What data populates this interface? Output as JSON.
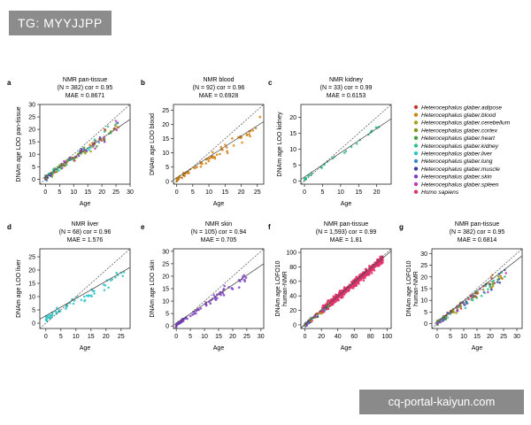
{
  "watermark": "TG: MYYJJPP",
  "footer": "cq-portal-kaiyun.com",
  "legend": [
    {
      "label": "Heterocephalus glaber.adipose",
      "color": "#c0392b"
    },
    {
      "label": "Heterocephalus glaber.blood",
      "color": "#d4800f"
    },
    {
      "label": "Heterocephalus glaber.cerebellum",
      "color": "#a4a21a"
    },
    {
      "label": "Heterocephalus glaber.cortex",
      "color": "#7a9a1a"
    },
    {
      "label": "Heterocephalus glaber.heart",
      "color": "#3aa33a"
    },
    {
      "label": "Heterocephalus glaber.kidney",
      "color": "#2fbf8f"
    },
    {
      "label": "Heterocephalus glaber.liver",
      "color": "#2ec4c4"
    },
    {
      "label": "Heterocephalus glaber.lung",
      "color": "#3a8ad6"
    },
    {
      "label": "Heterocephalus glaber.muscle",
      "color": "#3340a0"
    },
    {
      "label": "Heterocephalus glaber.skin",
      "color": "#7d3cc8"
    },
    {
      "label": "Heterocephalus glaber.spleen",
      "color": "#c23ab8"
    },
    {
      "label": "Homo sapiens",
      "color": "#e0306a"
    }
  ],
  "chart_data": [
    {
      "letter": "a",
      "type": "scatter",
      "title": "NMR pan-tissue",
      "stats": "(N = 382) cor = 0.95",
      "mae": "MAE = 0.8671",
      "ylabel": "DNAm age LOO pan-tissue",
      "xlabel": "Age",
      "xlim": [
        -2,
        30
      ],
      "ylim": [
        -2,
        30
      ],
      "xticks": [
        0,
        5,
        10,
        15,
        20,
        25,
        30
      ],
      "yticks": [
        0,
        5,
        10,
        15,
        20,
        25,
        30
      ],
      "fit": [
        [
          -1,
          0.3
        ],
        [
          30,
          24
        ]
      ],
      "groups": "mixed"
    },
    {
      "letter": "b",
      "type": "scatter",
      "title": "NMR blood",
      "stats": "(N = 92) cor = 0.96",
      "mae": "MAE = 0.6928",
      "ylabel": "DNAm age LOO blood",
      "xlabel": "Age",
      "xlim": [
        -1,
        27
      ],
      "ylim": [
        -1,
        27
      ],
      "xticks": [
        0,
        5,
        10,
        15,
        20,
        25
      ],
      "yticks": [
        0,
        5,
        10,
        15,
        20,
        25
      ],
      "fit": [
        [
          -1,
          0.5
        ],
        [
          27,
          21
        ]
      ],
      "groups": "blood"
    },
    {
      "letter": "c",
      "type": "scatter",
      "title": "NMR kidney",
      "stats": "(N = 33) cor = 0.99",
      "mae": "MAE = 0.6153",
      "ylabel": "DNAm age LOO kidney",
      "xlabel": "Age",
      "xlim": [
        -1,
        24
      ],
      "ylim": [
        -1,
        24
      ],
      "xticks": [
        0,
        5,
        10,
        15,
        20
      ],
      "yticks": [
        0,
        5,
        10,
        15,
        20
      ],
      "fit": [
        [
          -1,
          0.5
        ],
        [
          24,
          19.5
        ]
      ],
      "groups": "kidney"
    },
    {
      "letter": "d",
      "type": "scatter",
      "title": "NMR liver",
      "stats": "(N = 68) cor = 0.96",
      "mae": "MAE = 1.576",
      "ylabel": "DNAm age LOO liver",
      "xlabel": "Age",
      "xlim": [
        -2,
        28
      ],
      "ylim": [
        -2,
        28
      ],
      "xticks": [
        0,
        5,
        10,
        15,
        20,
        25
      ],
      "yticks": [
        0,
        5,
        10,
        15,
        20,
        25
      ],
      "fit": [
        [
          -2,
          1.5
        ],
        [
          28,
          21
        ]
      ],
      "groups": "liver"
    },
    {
      "letter": "e",
      "type": "scatter",
      "title": "NMR skin",
      "stats": "(N = 105) cor = 0.94",
      "mae": "MAE = 0.705",
      "ylabel": "DNAm age LOO skin",
      "xlabel": "Age",
      "xlim": [
        -1,
        31
      ],
      "ylim": [
        -1,
        31
      ],
      "xticks": [
        0,
        5,
        10,
        15,
        20,
        25,
        30
      ],
      "yticks": [
        0,
        5,
        10,
        15,
        20,
        25,
        30
      ],
      "fit": [
        [
          -1,
          0.3
        ],
        [
          31,
          25
        ]
      ],
      "groups": "skin"
    },
    {
      "letter": "f",
      "type": "scatter",
      "title": "NMR pan-tissue",
      "stats": "(N = 1,593) cor = 0.99",
      "mae": "MAE = 1.81",
      "ylabel": "DNAm age LOFO10 human-NMR",
      "xlabel": "Age",
      "xlim": [
        -5,
        105
      ],
      "ylim": [
        -5,
        105
      ],
      "xticks": [
        0,
        20,
        40,
        60,
        80,
        100
      ],
      "yticks": [
        0,
        20,
        40,
        60,
        80,
        100
      ],
      "fit": [
        [
          -5,
          -4
        ],
        [
          105,
          102
        ]
      ],
      "groups": "human"
    },
    {
      "letter": "g",
      "type": "scatter",
      "title": "NMR pan-tissue",
      "stats": "(N = 382) cor = 0.95",
      "mae": "MAE = 0.6814",
      "ylabel": "DNAm age LOFO10 human-NMR",
      "xlabel": "Age",
      "xlim": [
        -2,
        32
      ],
      "ylim": [
        -2,
        32
      ],
      "xticks": [
        0,
        5,
        10,
        15,
        20,
        25,
        30
      ],
      "yticks": [
        0,
        5,
        10,
        15,
        20,
        25,
        30
      ],
      "fit": [
        [
          -1,
          0
        ],
        [
          32,
          29
        ]
      ],
      "groups": "mixed"
    }
  ]
}
